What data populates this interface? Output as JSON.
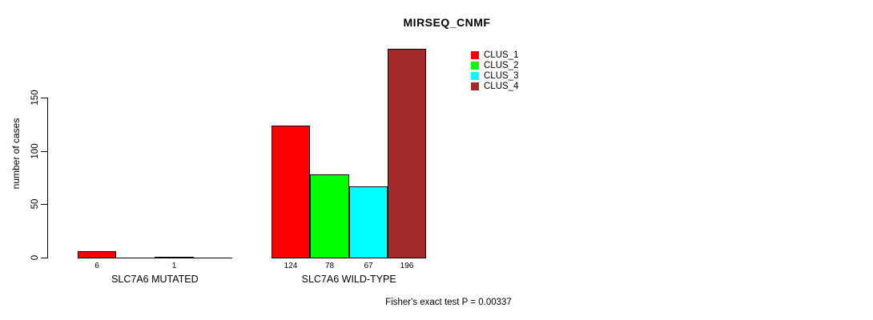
{
  "chart_data": {
    "type": "bar",
    "title": "MIRSEQ_CNMF",
    "ylabel": "number of cases",
    "xlabel": "",
    "yticks": [
      0,
      50,
      100,
      150
    ],
    "ylim": [
      0,
      200
    ],
    "grid": false,
    "legend_position": "top-right-inside",
    "series": [
      "CLUS_1",
      "CLUS_2",
      "CLUS_3",
      "CLUS_4"
    ],
    "colors": [
      "#FF0000",
      "#00FF00",
      "#00FFFF",
      "#A52A2A"
    ],
    "groups": [
      {
        "key": "mutated",
        "label": "SLC7A6 MUTATED",
        "values": [
          6,
          0,
          1,
          0
        ],
        "value_labels": [
          "6",
          "",
          "1",
          ""
        ]
      },
      {
        "key": "wild-type",
        "label": "SLC7A6 WILD-TYPE",
        "values": [
          124,
          78,
          67,
          196
        ],
        "value_labels": [
          "124",
          "78",
          "67",
          "196"
        ]
      }
    ],
    "annotation": "Fisher's exact test P = 0.00337"
  }
}
